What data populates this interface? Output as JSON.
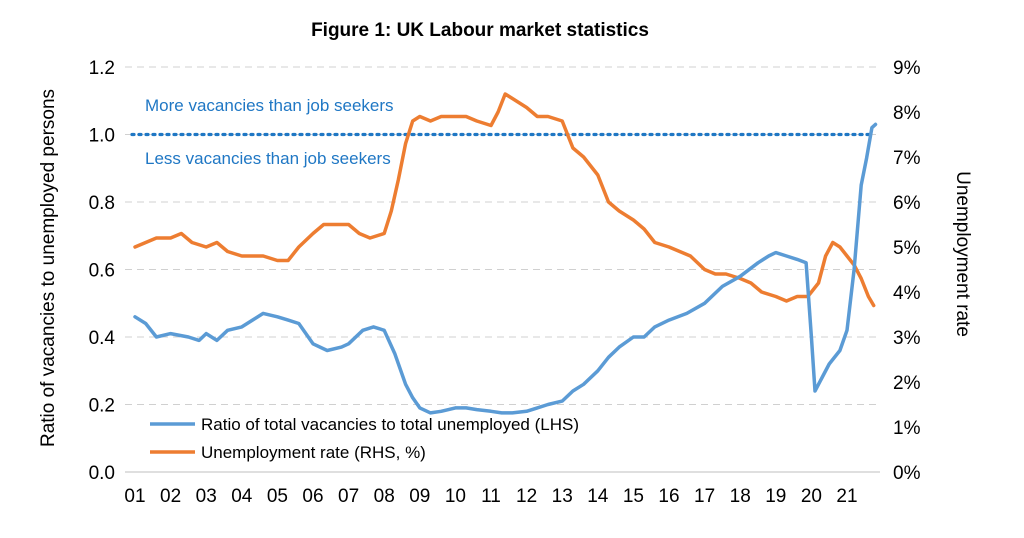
{
  "chart_data": {
    "type": "line",
    "title": "Figure 1: UK Labour market statistics",
    "ylabel": "Ratio of vacancies to unemployed persons",
    "y2label": "Unemployment rate",
    "ylim": [
      0,
      1.2
    ],
    "y2lim": [
      0,
      9
    ],
    "y_ticks": [
      "0.0",
      "0.2",
      "0.4",
      "0.6",
      "0.8",
      "1.0",
      "1.2"
    ],
    "y2_ticks": [
      "0%",
      "1%",
      "2%",
      "3%",
      "4%",
      "5%",
      "6%",
      "7%",
      "8%",
      "9%"
    ],
    "x_ticks": [
      "01",
      "02",
      "03",
      "04",
      "05",
      "06",
      "07",
      "08",
      "09",
      "10",
      "11",
      "12",
      "13",
      "14",
      "15",
      "16",
      "17",
      "18",
      "19",
      "20",
      "21"
    ],
    "grid": "horizontal dashed",
    "legend_position": "bottom-center",
    "reference_line": {
      "y": 1.0,
      "color": "#1F77C4",
      "style": "dotted"
    },
    "annotations": {
      "above": "More vacancies than job seekers",
      "below": "Less vacancies than job seekers"
    },
    "series": [
      {
        "name": "Ratio of total vacancies to total unemployed (LHS)",
        "axis": "left",
        "color": "#5B9BD5",
        "x": [
          2001.0,
          2001.3,
          2001.6,
          2002.0,
          2002.5,
          2002.8,
          2003.0,
          2003.3,
          2003.6,
          2004.0,
          2004.3,
          2004.6,
          2005.0,
          2005.3,
          2005.6,
          2006.0,
          2006.4,
          2006.8,
          2007.0,
          2007.4,
          2007.7,
          2008.0,
          2008.3,
          2008.6,
          2008.8,
          2009.0,
          2009.3,
          2009.6,
          2010.0,
          2010.3,
          2010.6,
          2011.0,
          2011.3,
          2011.6,
          2012.0,
          2012.3,
          2012.6,
          2013.0,
          2013.3,
          2013.6,
          2014.0,
          2014.3,
          2014.6,
          2015.0,
          2015.3,
          2015.6,
          2016.0,
          2016.5,
          2017.0,
          2017.5,
          2018.0,
          2018.5,
          2018.8,
          2019.0,
          2019.3,
          2019.6,
          2019.85,
          2020.0,
          2020.1,
          2020.3,
          2020.5,
          2020.8,
          2021.0,
          2021.2,
          2021.4,
          2021.55,
          2021.7,
          2021.8
        ],
        "values": [
          0.46,
          0.44,
          0.4,
          0.41,
          0.4,
          0.39,
          0.41,
          0.39,
          0.42,
          0.43,
          0.45,
          0.47,
          0.46,
          0.45,
          0.44,
          0.38,
          0.36,
          0.37,
          0.38,
          0.42,
          0.43,
          0.42,
          0.35,
          0.26,
          0.22,
          0.19,
          0.175,
          0.18,
          0.19,
          0.19,
          0.185,
          0.18,
          0.175,
          0.175,
          0.18,
          0.19,
          0.2,
          0.21,
          0.24,
          0.26,
          0.3,
          0.34,
          0.37,
          0.4,
          0.4,
          0.43,
          0.45,
          0.47,
          0.5,
          0.55,
          0.58,
          0.62,
          0.64,
          0.65,
          0.64,
          0.63,
          0.62,
          0.4,
          0.24,
          0.28,
          0.32,
          0.36,
          0.42,
          0.6,
          0.85,
          0.93,
          1.02,
          1.03
        ]
      },
      {
        "name": "Unemployment rate (RHS, %)",
        "axis": "right",
        "color": "#ED7D31",
        "x": [
          2001.0,
          2001.3,
          2001.6,
          2002.0,
          2002.3,
          2002.6,
          2003.0,
          2003.3,
          2003.6,
          2004.0,
          2004.3,
          2004.6,
          2005.0,
          2005.3,
          2005.6,
          2006.0,
          2006.3,
          2006.6,
          2007.0,
          2007.3,
          2007.6,
          2008.0,
          2008.2,
          2008.4,
          2008.6,
          2008.8,
          2009.0,
          2009.3,
          2009.6,
          2010.0,
          2010.3,
          2010.6,
          2011.0,
          2011.2,
          2011.4,
          2011.6,
          2012.0,
          2012.3,
          2012.6,
          2013.0,
          2013.3,
          2013.6,
          2014.0,
          2014.3,
          2014.6,
          2015.0,
          2015.3,
          2015.6,
          2016.0,
          2016.3,
          2016.6,
          2017.0,
          2017.3,
          2017.6,
          2018.0,
          2018.3,
          2018.6,
          2019.0,
          2019.3,
          2019.6,
          2019.9,
          2020.0,
          2020.2,
          2020.4,
          2020.6,
          2020.8,
          2021.0,
          2021.2,
          2021.4,
          2021.6,
          2021.75
        ],
        "values": [
          5.0,
          5.1,
          5.2,
          5.2,
          5.3,
          5.1,
          5.0,
          5.1,
          4.9,
          4.8,
          4.8,
          4.8,
          4.7,
          4.7,
          5.0,
          5.3,
          5.5,
          5.5,
          5.5,
          5.3,
          5.2,
          5.3,
          5.8,
          6.5,
          7.3,
          7.8,
          7.9,
          7.8,
          7.9,
          7.9,
          7.9,
          7.8,
          7.7,
          8.0,
          8.4,
          8.3,
          8.1,
          7.9,
          7.9,
          7.8,
          7.2,
          7.0,
          6.6,
          6.0,
          5.8,
          5.6,
          5.4,
          5.1,
          5.0,
          4.9,
          4.8,
          4.5,
          4.4,
          4.4,
          4.3,
          4.2,
          4.0,
          3.9,
          3.8,
          3.9,
          3.9,
          4.0,
          4.2,
          4.8,
          5.1,
          5.0,
          4.8,
          4.6,
          4.3,
          3.9,
          3.7
        ]
      }
    ]
  }
}
